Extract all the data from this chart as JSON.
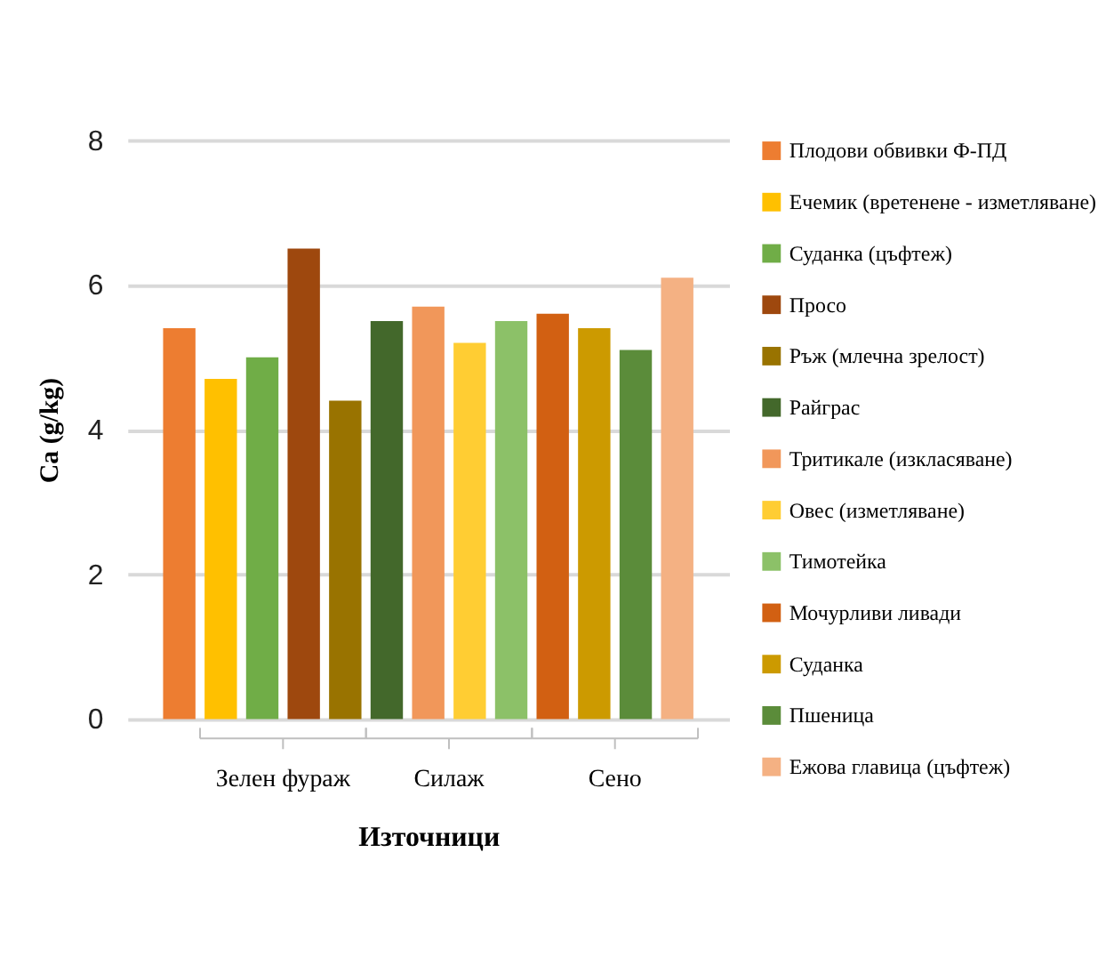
{
  "chart_data": {
    "type": "bar",
    "xlabel": "Източници",
    "ylabel": "Ca (g/kg)",
    "categories": [
      null,
      "Зелен фураж",
      "Силаж",
      "Сено"
    ],
    "ylim": [
      0,
      8
    ],
    "yticks": [
      0,
      2,
      4,
      6,
      8
    ],
    "grid": "y",
    "legend": "right",
    "series": [
      {
        "name": "Плодови обвивки Ф-ПД",
        "color": "#ed7d31",
        "values": [
          5.4,
          null,
          null,
          null
        ]
      },
      {
        "name": "Ечемик (вретенене - изметляване)",
        "color": "#ffc000",
        "values": [
          null,
          4.7,
          null,
          null
        ]
      },
      {
        "name": "Суданка (цъфтеж)",
        "color": "#70ad47",
        "values": [
          null,
          5.0,
          null,
          null
        ]
      },
      {
        "name": "Просо",
        "color": "#9e480e",
        "values": [
          null,
          6.5,
          null,
          null
        ]
      },
      {
        "name": "Ръж (млечна зрелост)",
        "color": "#997300",
        "values": [
          null,
          4.4,
          null,
          null
        ]
      },
      {
        "name": "Райграс",
        "color": "#43682b",
        "values": [
          null,
          null,
          5.5,
          null
        ]
      },
      {
        "name": "Тритикале (изкласяване)",
        "color": "#f1975a",
        "values": [
          null,
          null,
          5.7,
          null
        ]
      },
      {
        "name": "Овес (изметляване)",
        "color": "#ffcd33",
        "values": [
          null,
          null,
          5.2,
          null
        ]
      },
      {
        "name": "Тимотейка",
        "color": "#8cc168",
        "values": [
          null,
          null,
          5.5,
          null
        ]
      },
      {
        "name": "Мочурливи ливади",
        "color": "#d26012",
        "values": [
          null,
          null,
          null,
          5.6
        ]
      },
      {
        "name": "Суданка",
        "color": "#cc9a00",
        "values": [
          null,
          null,
          null,
          5.4
        ]
      },
      {
        "name": "Пшеница",
        "color": "#5b8c3a",
        "values": [
          null,
          null,
          null,
          5.1
        ]
      },
      {
        "name": "Ежова главица (цъфтеж)",
        "color": "#f4b183",
        "values": [
          null,
          null,
          null,
          6.1
        ]
      }
    ]
  }
}
